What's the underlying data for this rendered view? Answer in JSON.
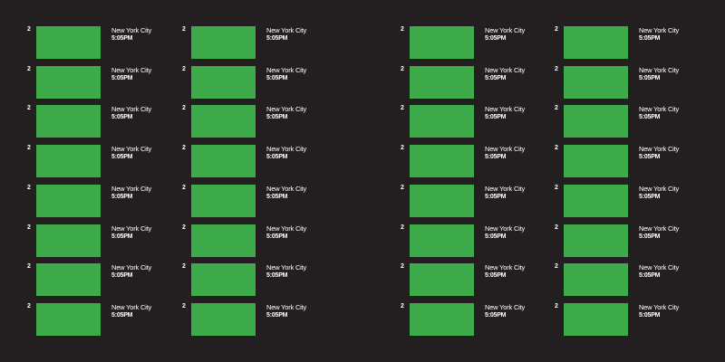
{
  "tiles": [
    {
      "number": "2",
      "city": "New York City",
      "time": "5:05PM"
    },
    {
      "number": "2",
      "city": "New York City",
      "time": "5:05PM"
    },
    {
      "number": "2",
      "city": "New York City",
      "time": "5:05PM"
    },
    {
      "number": "2",
      "city": "New York City",
      "time": "5:05PM"
    },
    {
      "number": "2",
      "city": "New York City",
      "time": "5:05PM"
    },
    {
      "number": "2",
      "city": "New York City",
      "time": "5:05PM"
    },
    {
      "number": "2",
      "city": "New York City",
      "time": "5:05PM"
    },
    {
      "number": "2",
      "city": "New York City",
      "time": "5:05PM"
    },
    {
      "number": "2",
      "city": "New York City",
      "time": "5:05PM"
    },
    {
      "number": "2",
      "city": "New York City",
      "time": "5:05PM"
    },
    {
      "number": "2",
      "city": "New York City",
      "time": "5:05PM"
    },
    {
      "number": "2",
      "city": "New York City",
      "time": "5:05PM"
    },
    {
      "number": "2",
      "city": "New York City",
      "time": "5:05PM"
    },
    {
      "number": "2",
      "city": "New York City",
      "time": "5:05PM"
    },
    {
      "number": "2",
      "city": "New York City",
      "time": "5:05PM"
    },
    {
      "number": "2",
      "city": "New York City",
      "time": "5:05PM"
    },
    {
      "number": "2",
      "city": "New York City",
      "time": "5:05PM"
    },
    {
      "number": "2",
      "city": "New York City",
      "time": "5:05PM"
    },
    {
      "number": "2",
      "city": "New York City",
      "time": "5:05PM"
    },
    {
      "number": "2",
      "city": "New York City",
      "time": "5:05PM"
    },
    {
      "number": "2",
      "city": "New York City",
      "time": "5:05PM"
    },
    {
      "number": "2",
      "city": "New York City",
      "time": "5:05PM"
    },
    {
      "number": "2",
      "city": "New York City",
      "time": "5:05PM"
    },
    {
      "number": "2",
      "city": "New York City",
      "time": "5:05PM"
    },
    {
      "number": "2",
      "city": "New York City",
      "time": "5:05PM"
    },
    {
      "number": "2",
      "city": "New York City",
      "time": "5:05PM"
    },
    {
      "number": "2",
      "city": "New York City",
      "time": "5:05PM"
    },
    {
      "number": "2",
      "city": "New York City",
      "time": "5:05PM"
    },
    {
      "number": "2",
      "city": "New York City",
      "time": "5:05PM"
    },
    {
      "number": "2",
      "city": "New York City",
      "time": "5:05PM"
    },
    {
      "number": "2",
      "city": "New York City",
      "time": "5:05PM"
    },
    {
      "number": "2",
      "city": "New York City",
      "time": "5:05PM"
    }
  ],
  "colors": {
    "background": "#231f20",
    "swatch": "#3dab4a",
    "text": "#ffffff"
  }
}
